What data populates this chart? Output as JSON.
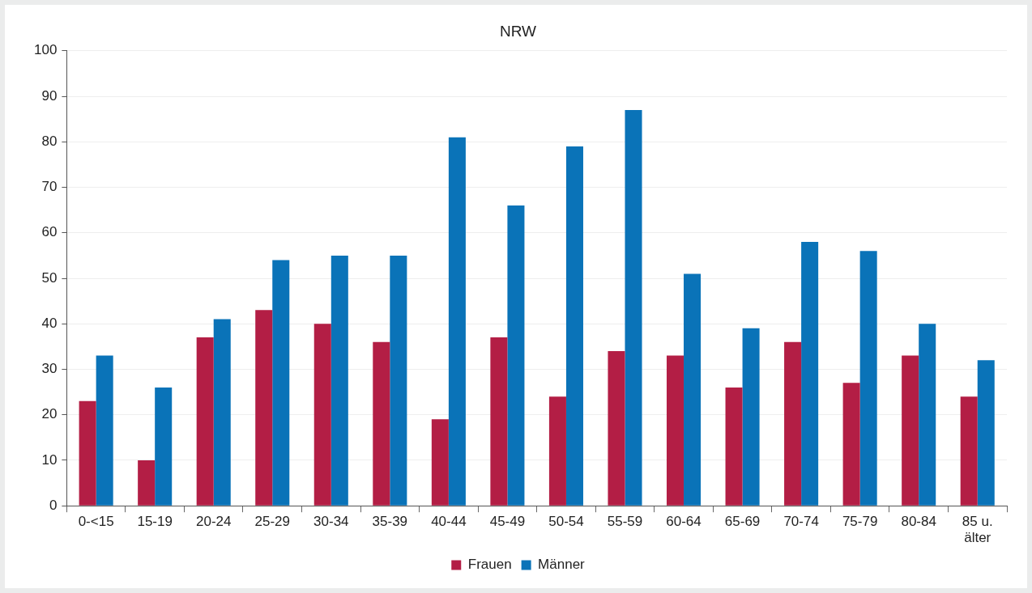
{
  "chart_data": {
    "type": "bar",
    "title": "NRW",
    "categories": [
      "0-<15",
      "15-19",
      "20-24",
      "25-29",
      "30-34",
      "35-39",
      "40-44",
      "45-49",
      "50-54",
      "55-59",
      "60-64",
      "65-69",
      "70-74",
      "75-79",
      "80-84",
      "85 u. älter"
    ],
    "series": [
      {
        "name": "Frauen",
        "color": "#b31e45",
        "values": [
          23,
          10,
          37,
          43,
          40,
          36,
          19,
          37,
          24,
          34,
          33,
          26,
          36,
          27,
          33,
          24
        ]
      },
      {
        "name": "Männer",
        "color": "#0a73b8",
        "values": [
          33,
          26,
          41,
          54,
          55,
          55,
          81,
          66,
          79,
          87,
          51,
          39,
          58,
          56,
          40,
          32
        ]
      }
    ],
    "ylim": [
      0,
      100
    ],
    "yticks": [
      0,
      10,
      20,
      30,
      40,
      50,
      60,
      70,
      80,
      90,
      100
    ],
    "grid": "y",
    "legend": "bottom"
  }
}
